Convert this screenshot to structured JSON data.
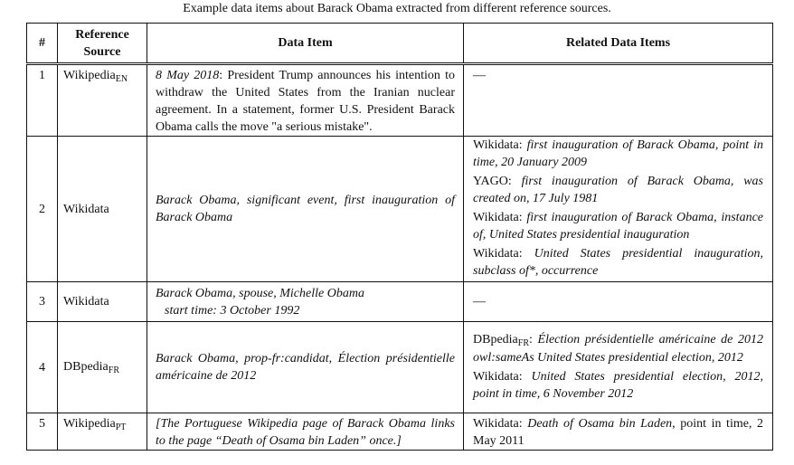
{
  "caption": "Example data items about Barack Obama extracted from different reference sources.",
  "headers": {
    "num": "#",
    "source_line1": "Reference",
    "source_line2": "Source",
    "item": "Data Item",
    "related": "Related Data Items"
  },
  "rows": [
    {
      "num": "1",
      "source": "Wikipedia",
      "source_sub": "EN",
      "item_date": "8 May 2018",
      "item_text": ": President Trump announces his intention to withdraw the United States from the Iranian nuclear agreement. In a statement, former U.S. President Barack Obama calls the move \"a serious mistake\".",
      "related": "—"
    },
    {
      "num": "2",
      "source": "Wikidata",
      "item": "Barack Obama, significant event, first inauguration of Barack Obama",
      "related_items": [
        {
          "prefix": "Wikidata: ",
          "text": "first inauguration of Barack Obama, point in time, 20 January 2009"
        },
        {
          "prefix": "YAGO: ",
          "text": "first inauguration of Barack Obama, was created on, 17 July 1981"
        },
        {
          "prefix": "Wikidata: ",
          "text": "first inauguration of Barack Obama, instance of, United States presidential inauguration"
        },
        {
          "prefix": "Wikidata: ",
          "text": "United States presidential inauguration, subclass of*, occurrence"
        }
      ]
    },
    {
      "num": "3",
      "source": "Wikidata",
      "item_line1": "Barack Obama, spouse, Michelle Obama",
      "item_line2": "start time: 3 October 1992",
      "related": "—"
    },
    {
      "num": "4",
      "source": "DBpedia",
      "source_sub": "FR",
      "item": "Barack Obama, prop-fr:candidat, Élection présidentielle américaine de 2012",
      "related_items": [
        {
          "prefix": "DBpedia",
          "prefix_sub": "FR",
          "prefix_tail": ": ",
          "text": "Élection présidentielle américaine de 2012 owl:sameAs United States presidential election, 2012"
        },
        {
          "prefix": "Wikidata: ",
          "text": "United States presidential election, 2012, point in time, 6 November 2012"
        }
      ]
    },
    {
      "num": "5",
      "source": "Wikipedia",
      "source_sub": "PT",
      "item": "[The Portuguese Wikipedia page of Barack Obama links to the page “Death of Osama bin Laden” once.]",
      "related_prefix": "Wikidata: ",
      "related_em": "Death of Osama bin Laden",
      "related_tail": ", point in time, 2 May 2011"
    }
  ]
}
